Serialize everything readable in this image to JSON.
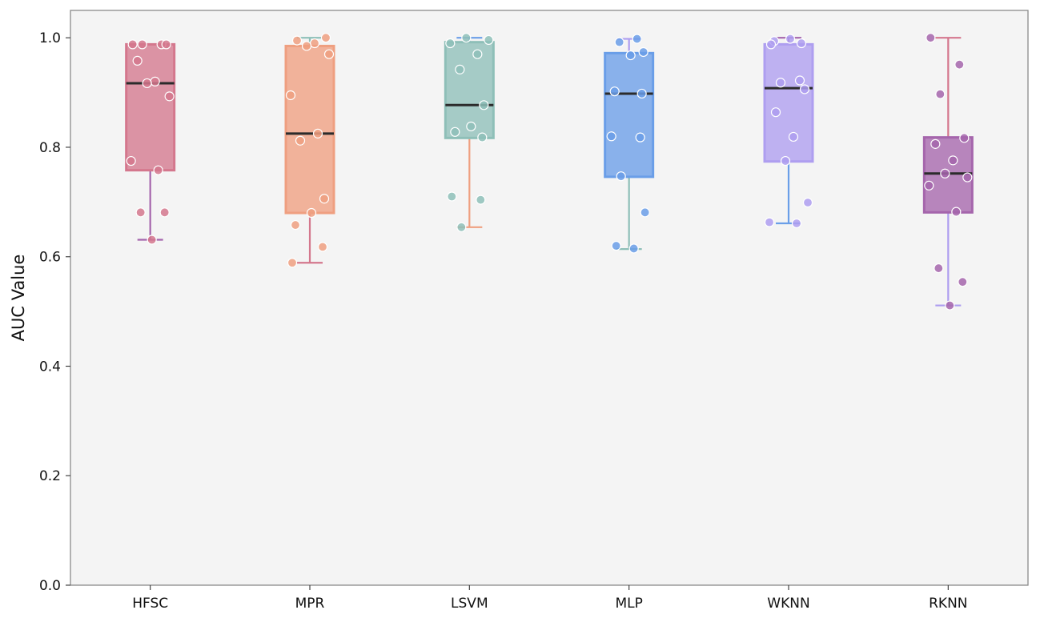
{
  "chart_data": {
    "type": "box",
    "title": "",
    "xlabel": "",
    "ylabel": "AUC Value",
    "ylim": [
      0.0,
      1.05
    ],
    "yticks": [
      "0.0",
      "0.2",
      "0.4",
      "0.6",
      "0.8",
      "1.0"
    ],
    "grid": false,
    "legend": "none",
    "categories": [
      "HFSC",
      "MPR",
      "LSVM",
      "MLP",
      "WKNN",
      "RKNN"
    ],
    "series": [
      {
        "category": "HFSC",
        "color": "#d4778d",
        "box": {
          "q1": 0.758,
          "median": 0.917,
          "q3": 0.988,
          "whisker_low": 0.631,
          "whisker_high": 0.988
        },
        "points": [
          0.988,
          0.988,
          0.988,
          0.988,
          0.958,
          0.92,
          0.917,
          0.893,
          0.775,
          0.758,
          0.681,
          0.681,
          0.631
        ]
      },
      {
        "category": "MPR",
        "color": "#ef9f80",
        "box": {
          "q1": 0.68,
          "median": 0.825,
          "q3": 0.985,
          "whisker_low": 0.589,
          "whisker_high": 1.0
        },
        "points": [
          1.0,
          0.995,
          0.99,
          0.985,
          0.97,
          0.895,
          0.825,
          0.812,
          0.706,
          0.68,
          0.658,
          0.618,
          0.589
        ]
      },
      {
        "category": "LSVM",
        "color": "#8ebfb8",
        "box": {
          "q1": 0.817,
          "median": 0.877,
          "q3": 0.992,
          "whisker_low": 0.654,
          "whisker_high": 1.0
        },
        "points": [
          1.0,
          0.996,
          0.99,
          0.97,
          0.942,
          0.877,
          0.838,
          0.828,
          0.818,
          0.71,
          0.704,
          0.654
        ]
      },
      {
        "category": "MLP",
        "color": "#6a9ee8",
        "box": {
          "q1": 0.746,
          "median": 0.898,
          "q3": 0.972,
          "whisker_low": 0.614,
          "whisker_high": 0.998
        },
        "points": [
          0.998,
          0.992,
          0.974,
          0.968,
          0.902,
          0.898,
          0.82,
          0.818,
          0.747,
          0.681,
          0.62,
          0.615
        ]
      },
      {
        "category": "WKNN",
        "color": "#ae9ef0",
        "box": {
          "q1": 0.774,
          "median": 0.908,
          "q3": 0.988,
          "whisker_low": 0.661,
          "whisker_high": 1.0
        },
        "points": [
          0.998,
          0.994,
          0.99,
          0.988,
          0.922,
          0.918,
          0.906,
          0.864,
          0.819,
          0.775,
          0.699,
          0.663,
          0.661
        ]
      },
      {
        "category": "RKNN",
        "color": "#a565ac",
        "box": {
          "q1": 0.681,
          "median": 0.752,
          "q3": 0.818,
          "whisker_low": 0.511,
          "whisker_high": 1.0
        },
        "points": [
          1.0,
          0.951,
          0.897,
          0.817,
          0.806,
          0.776,
          0.752,
          0.745,
          0.73,
          0.682,
          0.579,
          0.554,
          0.511
        ]
      }
    ]
  }
}
